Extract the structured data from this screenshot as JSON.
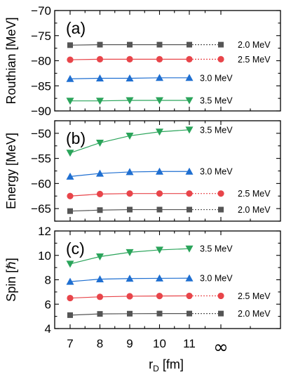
{
  "chart_data": [
    {
      "type": "line",
      "panel_label": "(a)",
      "ylabel": "Routhian [MeV]",
      "ylim": [
        -90,
        -70
      ],
      "yticks": [
        -90,
        -85,
        -80,
        -75,
        -70
      ],
      "series": [
        {
          "name": "2.0 MeV",
          "color": "#555555",
          "marker": "square",
          "values": [
            -76.9,
            -76.8,
            -76.8,
            -76.8,
            -76.8
          ],
          "limit": -76.8
        },
        {
          "name": "2.5 MeV",
          "color": "#e8454a",
          "marker": "circle",
          "values": [
            -79.8,
            -79.7,
            -79.7,
            -79.7,
            -79.7
          ],
          "limit": -79.7
        },
        {
          "name": "3.0 MeV",
          "color": "#1f6fd1",
          "marker": "triangle-up",
          "values": [
            -83.6,
            -83.5,
            -83.5,
            -83.4,
            -83.4
          ],
          "limit": null
        },
        {
          "name": "3.5 MeV",
          "color": "#2aa45a",
          "marker": "triangle-down",
          "values": [
            -88.0,
            -88.0,
            -87.9,
            -87.9,
            -87.9
          ],
          "limit": null
        }
      ]
    },
    {
      "type": "line",
      "panel_label": "(b)",
      "ylabel": "Energy [MeV]",
      "ylim": [
        -67.5,
        -47.5
      ],
      "yticks": [
        -65,
        -60,
        -55,
        -50
      ],
      "series": [
        {
          "name": "3.5 MeV",
          "color": "#2aa45a",
          "marker": "triangle-down",
          "values": [
            -53.9,
            -51.9,
            -50.5,
            -49.7,
            -49.3
          ],
          "limit": null
        },
        {
          "name": "3.0 MeV",
          "color": "#1f6fd1",
          "marker": "triangle-up",
          "values": [
            -58.6,
            -58.0,
            -57.7,
            -57.6,
            -57.6
          ],
          "limit": null
        },
        {
          "name": "2.5 MeV",
          "color": "#e8454a",
          "marker": "circle",
          "values": [
            -62.5,
            -62.1,
            -62.0,
            -62.0,
            -62.0
          ],
          "limit": -62.0
        },
        {
          "name": "2.0 MeV",
          "color": "#555555",
          "marker": "square",
          "values": [
            -65.5,
            -65.3,
            -65.2,
            -65.2,
            -65.2
          ],
          "limit": -65.2
        }
      ]
    },
    {
      "type": "line",
      "panel_label": "(c)",
      "ylabel": "Spin [ℏ]",
      "ylim": [
        4,
        12
      ],
      "yticks": [
        4,
        6,
        8,
        10,
        12
      ],
      "series": [
        {
          "name": "3.5 MeV",
          "color": "#2aa45a",
          "marker": "triangle-down",
          "values": [
            9.3,
            9.9,
            10.25,
            10.45,
            10.55
          ],
          "limit": null
        },
        {
          "name": "3.0 MeV",
          "color": "#1f6fd1",
          "marker": "triangle-up",
          "values": [
            7.85,
            8.05,
            8.1,
            8.12,
            8.13
          ],
          "limit": null
        },
        {
          "name": "2.5 MeV",
          "color": "#e8454a",
          "marker": "circle",
          "values": [
            6.5,
            6.6,
            6.65,
            6.67,
            6.68
          ],
          "limit": 6.68
        },
        {
          "name": "2.0 MeV",
          "color": "#555555",
          "marker": "square",
          "values": [
            5.1,
            5.2,
            5.22,
            5.23,
            5.23
          ],
          "limit": 5.23
        }
      ]
    }
  ],
  "x_axis": {
    "categories": [
      "7",
      "8",
      "9",
      "10",
      "11",
      "∞"
    ],
    "xlabel_main": "r",
    "xlabel_sub": "D",
    "xlabel_unit": " [fm]"
  }
}
